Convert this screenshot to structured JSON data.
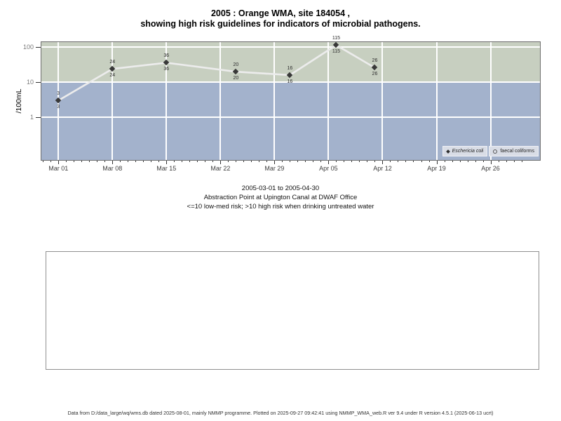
{
  "page": {
    "title_line1": "2005 : Orange WMA, site 184054 ,",
    "title_line2": "showing high risk guidelines for indicators of microbial pathogens.",
    "subtitle_line1": "2005-03-01 to 2005-04-30",
    "subtitle_line2": "Abstraction Point at Upington Canal at DWAF Office",
    "subtitle_line3": "<=10 low-med risk; >10 high risk when drinking untreated water",
    "footer": "Data from D:/data_large/wq/wms.db dated 2025-08-01, mainly NMMP programme. Plotted on 2025-09-27 09:42:41 using NMMP_WMA_web.R ver 9.4 under R version 4.5.1 (2025-06-13 ucrt)"
  },
  "chart_data": {
    "type": "line",
    "title": "2005 : Orange WMA, site 184054 , showing high risk guidelines for indicators of microbial pathogens.",
    "xlabel": "",
    "ylabel": "/100mL",
    "y_scale": "log10",
    "y_ticks": [
      1,
      10,
      100
    ],
    "ylim": [
      0.06,
      140
    ],
    "x_axis_start_date": "2005-03-01",
    "x_range_days": [
      -2.2,
      62.4
    ],
    "x_ticks": [
      {
        "label": "Mar 01",
        "day": 0
      },
      {
        "label": "Mar 08",
        "day": 7
      },
      {
        "label": "Mar 15",
        "day": 14
      },
      {
        "label": "Mar 22",
        "day": 21
      },
      {
        "label": "Mar 29",
        "day": 28
      },
      {
        "label": "Apr 05",
        "day": 35
      },
      {
        "label": "Apr 12",
        "day": 42
      },
      {
        "label": "Apr 19",
        "day": 49
      },
      {
        "label": "Apr 26",
        "day": 56
      }
    ],
    "x_minor_tick_day_range": [
      -2,
      60
    ],
    "high_risk_threshold": 10,
    "points": [
      {
        "date": "2005-03-01",
        "day": 0,
        "ecoli": 3,
        "faecal": 3
      },
      {
        "date": "2005-03-08",
        "day": 7,
        "ecoli": 24,
        "faecal": 24
      },
      {
        "date": "2005-03-15",
        "day": 14,
        "ecoli": 36,
        "faecal": 36
      },
      {
        "date": "2005-03-24",
        "day": 23,
        "ecoli": 20,
        "faecal": 20
      },
      {
        "date": "2005-03-31",
        "day": 30,
        "ecoli": 16,
        "faecal": 16
      },
      {
        "date": "2005-04-06",
        "day": 36,
        "ecoli": 115,
        "faecal": 115
      },
      {
        "date": "2005-04-11",
        "day": 41,
        "ecoli": 26,
        "faecal": 26
      }
    ],
    "legend": [
      {
        "label": "Eschericia coli",
        "marker": "filled-diamond-icon"
      },
      {
        "label": "faecal coliforms",
        "marker": "open-circle-icon"
      }
    ],
    "legend_position": "bottom-right-inside",
    "grid": true,
    "colors": {
      "band_high_risk": "#c7cfc0",
      "band_low_risk": "#a3b2cc",
      "grid": "#ffffff",
      "line": "#ececec",
      "marker": "#383838",
      "legend_bg": "#d9dde6",
      "plot_border": "#6e6e6e"
    }
  }
}
